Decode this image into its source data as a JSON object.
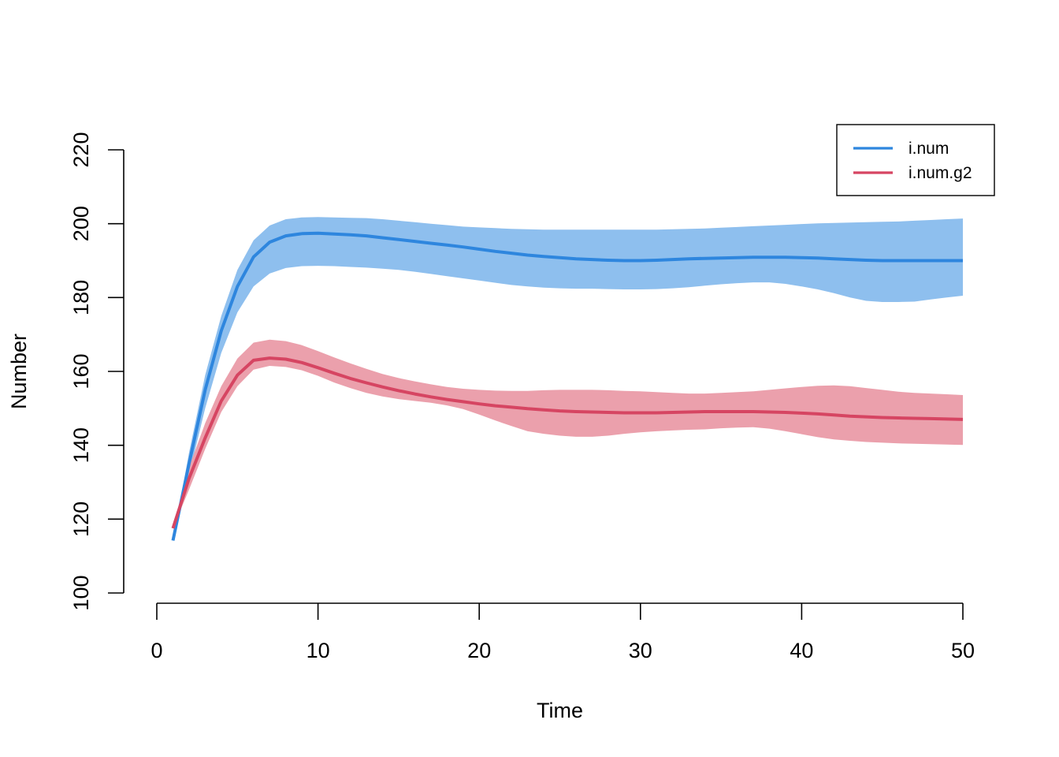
{
  "chart_data": {
    "type": "line",
    "title": "",
    "xlabel": "Time",
    "ylabel": "Number",
    "xlim": [
      0,
      50
    ],
    "ylim": [
      100,
      220
    ],
    "xticks": [
      0,
      10,
      20,
      30,
      40,
      50
    ],
    "yticks": [
      100,
      120,
      140,
      160,
      180,
      200,
      220
    ],
    "grid": false,
    "legend_position": "top-right",
    "x": [
      1,
      2,
      3,
      4,
      5,
      6,
      7,
      8,
      9,
      10,
      11,
      12,
      13,
      14,
      15,
      16,
      17,
      18,
      19,
      20,
      21,
      22,
      23,
      24,
      25,
      26,
      27,
      28,
      29,
      30,
      31,
      32,
      33,
      34,
      35,
      36,
      37,
      38,
      39,
      40,
      41,
      42,
      43,
      44,
      45,
      46,
      47,
      48,
      49,
      50
    ],
    "series": [
      {
        "name": "i.num",
        "color": "#2E86DE",
        "band_color": "#8EBFEE",
        "values": [
          114.2,
          135,
          155,
          171,
          183,
          191,
          195,
          196.7,
          197.3,
          197.4,
          197.2,
          197,
          196.7,
          196.2,
          195.7,
          195.2,
          194.7,
          194.2,
          193.7,
          193.1,
          192.5,
          192,
          191.5,
          191.1,
          190.8,
          190.5,
          190.3,
          190.1,
          190,
          190,
          190.1,
          190.3,
          190.5,
          190.6,
          190.7,
          190.8,
          190.9,
          190.9,
          190.9,
          190.8,
          190.7,
          190.5,
          190.3,
          190.1,
          190,
          190,
          190,
          190,
          190,
          190
        ],
        "lower": [
          114.2,
          132,
          150,
          165,
          176,
          183,
          186.5,
          188,
          188.5,
          188.6,
          188.5,
          188.3,
          188.1,
          187.8,
          187.5,
          187,
          186.4,
          185.8,
          185.2,
          184.6,
          184,
          183.4,
          183,
          182.7,
          182.5,
          182.4,
          182.4,
          182.3,
          182.2,
          182.2,
          182.3,
          182.5,
          182.8,
          183.2,
          183.6,
          183.9,
          184.1,
          184.1,
          183.7,
          183,
          182.2,
          181.2,
          180,
          179.1,
          178.8,
          178.8,
          178.9,
          179.5,
          180,
          180.5
        ],
        "upper": [
          114.2,
          138,
          159,
          175,
          187.5,
          195.5,
          199.5,
          201.2,
          201.7,
          201.8,
          201.7,
          201.6,
          201.5,
          201.2,
          200.8,
          200.4,
          200,
          199.6,
          199.2,
          199,
          198.8,
          198.6,
          198.5,
          198.4,
          198.4,
          198.4,
          198.4,
          198.4,
          198.4,
          198.4,
          198.4,
          198.5,
          198.6,
          198.7,
          198.9,
          199.1,
          199.3,
          199.5,
          199.7,
          199.9,
          200.1,
          200.2,
          200.3,
          200.4,
          200.5,
          200.6,
          200.8,
          201,
          201.2,
          201.4
        ]
      },
      {
        "name": "i.num.g2",
        "color": "#D64562",
        "band_color": "#EBA0AC",
        "values": [
          117.5,
          131,
          142,
          152,
          159,
          163,
          163.6,
          163.3,
          162.4,
          161,
          159.5,
          158.1,
          156.9,
          155.8,
          154.8,
          153.9,
          153.1,
          152.4,
          151.8,
          151.2,
          150.7,
          150.3,
          149.9,
          149.6,
          149.3,
          149.1,
          149,
          148.9,
          148.8,
          148.8,
          148.8,
          148.9,
          149,
          149.1,
          149.1,
          149.1,
          149.1,
          149,
          148.9,
          148.7,
          148.5,
          148.2,
          147.9,
          147.7,
          147.5,
          147.4,
          147.3,
          147.2,
          147.1,
          147
        ],
        "lower": [
          117.5,
          128,
          139,
          149,
          156,
          160.5,
          161.5,
          161.2,
          160.3,
          158.8,
          157,
          155.5,
          154.2,
          153.2,
          152.5,
          152,
          151.5,
          150.8,
          149.8,
          148.3,
          146.7,
          145.2,
          143.8,
          143.1,
          142.6,
          142.3,
          142.3,
          142.6,
          143.1,
          143.5,
          143.8,
          144,
          144.2,
          144.3,
          144.6,
          144.8,
          144.9,
          144.5,
          143.8,
          143,
          142.2,
          141.6,
          141.2,
          140.9,
          140.7,
          140.5,
          140.4,
          140.3,
          140.2,
          140.1
        ],
        "upper": [
          117.5,
          134,
          146,
          156,
          163.5,
          167.8,
          168.6,
          168.2,
          167.1,
          165.5,
          163.8,
          162.2,
          160.7,
          159.3,
          158.2,
          157.3,
          156.5,
          155.8,
          155.3,
          155,
          154.8,
          154.7,
          154.7,
          154.9,
          155,
          155,
          155,
          154.9,
          154.7,
          154.6,
          154.4,
          154.2,
          154,
          154,
          154.2,
          154.4,
          154.6,
          155,
          155.4,
          155.8,
          156.1,
          156.2,
          156,
          155.5,
          155,
          154.5,
          154.2,
          154,
          153.8,
          153.6
        ]
      }
    ]
  }
}
